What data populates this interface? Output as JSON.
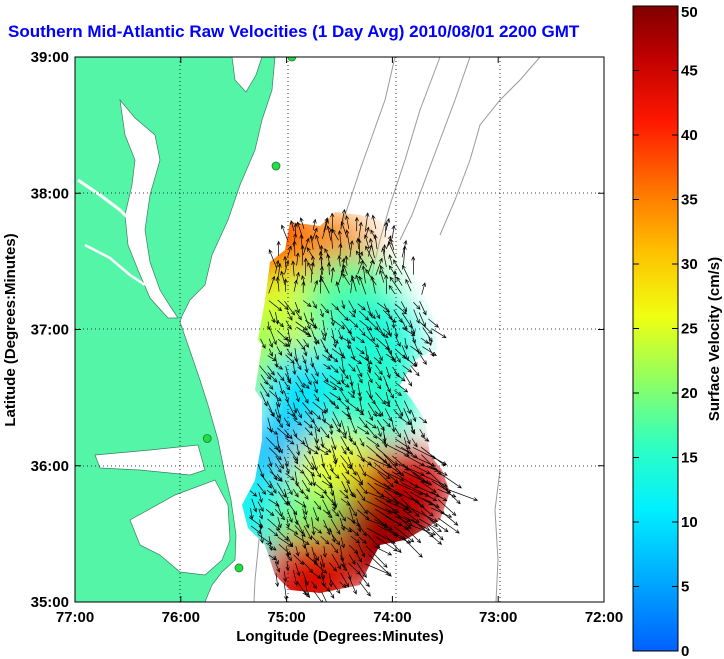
{
  "chart_data": {
    "type": "heatmap",
    "title": "Southern Mid-Atlantic Raw Velocities (1 Day Avg) 2010/08/01 2200 GMT",
    "xlabel": "Longitude (Degrees:Minutes)",
    "ylabel": "Latitude (Degrees:Minutes)",
    "xlim": [
      -77,
      -72
    ],
    "ylim": [
      35,
      39
    ],
    "x_ticks": [
      {
        "value": -77,
        "label": "77:00"
      },
      {
        "value": -76,
        "label": "76:00"
      },
      {
        "value": -75,
        "label": "75:00"
      },
      {
        "value": -74,
        "label": "74:00"
      },
      {
        "value": -73,
        "label": "73:00"
      },
      {
        "value": -72,
        "label": "72:00"
      }
    ],
    "y_ticks": [
      {
        "value": 35,
        "label": "35:00"
      },
      {
        "value": 36,
        "label": "36:00"
      },
      {
        "value": 37,
        "label": "37:00"
      },
      {
        "value": 38,
        "label": "38:00"
      },
      {
        "value": 39,
        "label": "39:00"
      }
    ],
    "grid": true,
    "colorbar": {
      "label": "Surface Velocity (cm/s)",
      "min": 0,
      "max": 50,
      "ticks": [
        0,
        5,
        10,
        15,
        20,
        25,
        30,
        35,
        40,
        45,
        50
      ]
    },
    "velocity_field": [
      {
        "lon": -75.2,
        "lat": 37.6,
        "speed": 40
      },
      {
        "lon": -74.6,
        "lat": 37.5,
        "speed": 35
      },
      {
        "lon": -75.0,
        "lat": 37.1,
        "speed": 25
      },
      {
        "lon": -74.4,
        "lat": 37.2,
        "speed": 18
      },
      {
        "lon": -74.2,
        "lat": 36.9,
        "speed": 14
      },
      {
        "lon": -75.4,
        "lat": 36.8,
        "speed": 22
      },
      {
        "lon": -74.8,
        "lat": 36.5,
        "speed": 10
      },
      {
        "lon": -74.2,
        "lat": 36.5,
        "speed": 15
      },
      {
        "lon": -75.0,
        "lat": 36.0,
        "speed": 7
      },
      {
        "lon": -74.5,
        "lat": 35.9,
        "speed": 26
      },
      {
        "lon": -73.9,
        "lat": 35.8,
        "speed": 45
      },
      {
        "lon": -75.3,
        "lat": 35.6,
        "speed": 12
      },
      {
        "lon": -74.7,
        "lat": 35.5,
        "speed": 20
      },
      {
        "lon": -74.1,
        "lat": 35.5,
        "speed": 48
      },
      {
        "lon": -74.8,
        "lat": 35.15,
        "speed": 44
      }
    ],
    "stations": [
      {
        "lon": -74.95,
        "lat": 39.0
      },
      {
        "lon": -75.1,
        "lat": 38.2
      },
      {
        "lon": -75.75,
        "lat": 36.2
      },
      {
        "lon": -75.45,
        "lat": 35.25
      }
    ]
  }
}
